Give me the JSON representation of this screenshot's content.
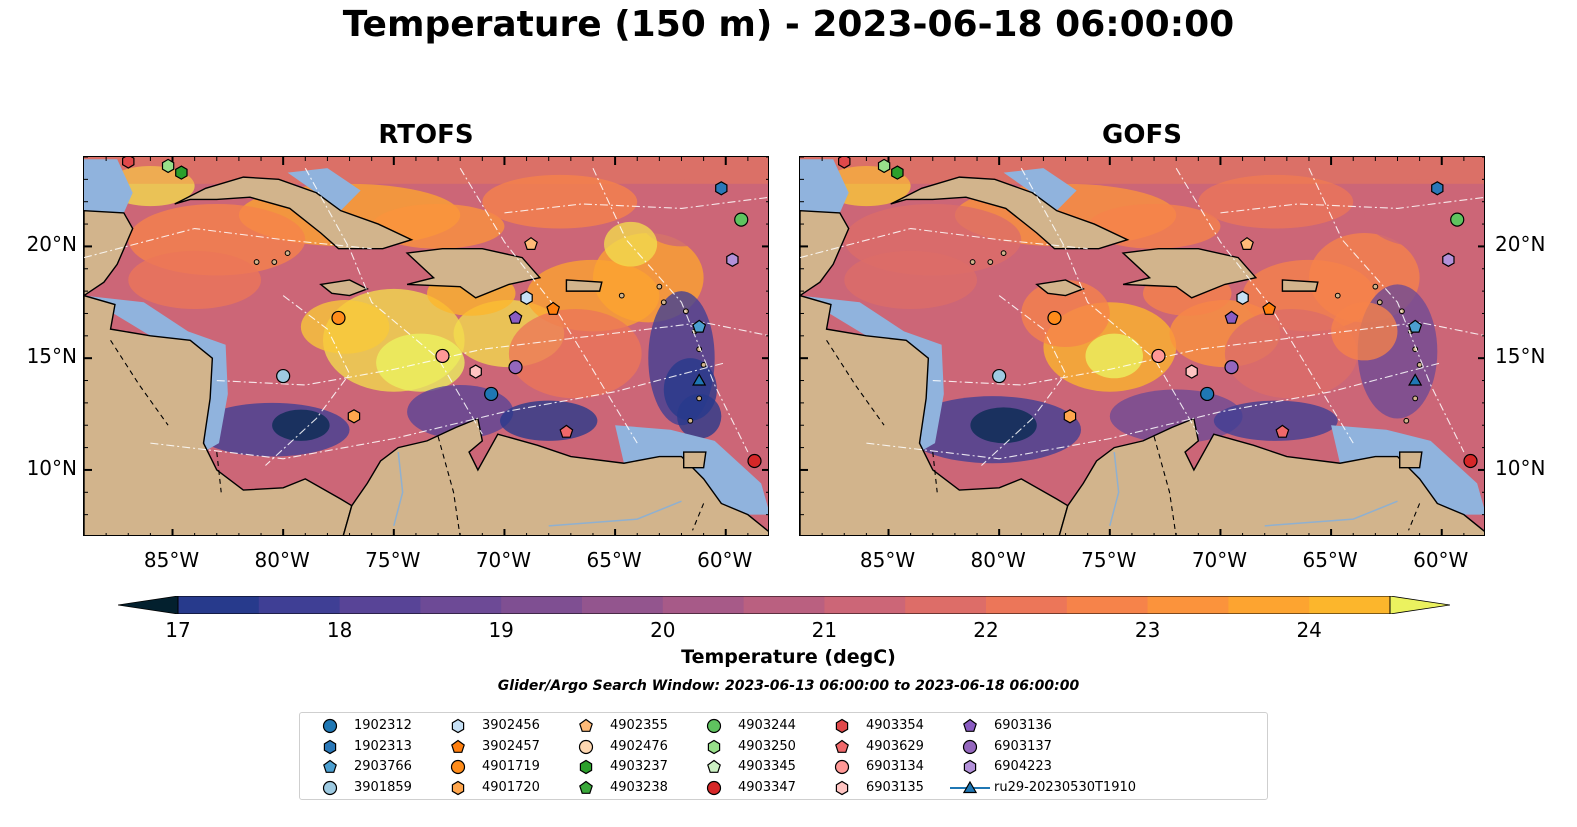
{
  "title": "Temperature (150 m) - 2023-06-18 06:00:00",
  "panels": [
    {
      "title": "RTOFS"
    },
    {
      "title": "GOFS"
    }
  ],
  "axes": {
    "lon_ticks": [
      "85°W",
      "80°W",
      "75°W",
      "70°W",
      "65°W",
      "60°W"
    ],
    "lat_ticks": [
      "20°N",
      "15°N",
      "10°N"
    ],
    "lon_range": [
      -89,
      -58
    ],
    "lat_range": [
      7,
      24
    ]
  },
  "colorbar": {
    "label": "Temperature (degC)",
    "ticks": [
      "17",
      "18",
      "19",
      "20",
      "21",
      "22",
      "23",
      "24"
    ],
    "range": [
      16.75,
      24.5
    ],
    "colors": [
      "#03202e",
      "#082c52",
      "#123473",
      "#273a8c",
      "#3f3f95",
      "#584497",
      "#6d4a96",
      "#7f4f92",
      "#93558e",
      "#a75a88",
      "#ba6080",
      "#cc6677",
      "#dd6d68",
      "#ec7659",
      "#f6834a",
      "#fb933c",
      "#fda430",
      "#fcb62c",
      "#f8c939",
      "#f2dd4d",
      "#ebf25f"
    ]
  },
  "search_window": "Glider/Argo Search Window: 2023-06-13 06:00:00 to 2023-06-18 06:00:00",
  "legend": [
    {
      "label": "1902312",
      "marker": "circle",
      "color": "#1f77b4"
    },
    {
      "label": "1902313",
      "marker": "hexagon",
      "color": "#2a78b8"
    },
    {
      "label": "2903766",
      "marker": "pentagon",
      "color": "#4c9fd0"
    },
    {
      "label": "3901859",
      "marker": "circle",
      "color": "#9ecae1"
    },
    {
      "label": "3902456",
      "marker": "hexagon",
      "color": "#c6e0f5"
    },
    {
      "label": "3902457",
      "marker": "pentagon",
      "color": "#ff7f0e"
    },
    {
      "label": "4901719",
      "marker": "circle",
      "color": "#ff8c1a"
    },
    {
      "label": "4901720",
      "marker": "hexagon",
      "color": "#ffa64d"
    },
    {
      "label": "4902355",
      "marker": "pentagon",
      "color": "#ffbb78"
    },
    {
      "label": "4902476",
      "marker": "circle",
      "color": "#ffd8b1"
    },
    {
      "label": "4903237",
      "marker": "hexagon",
      "color": "#2ca02c"
    },
    {
      "label": "4903238",
      "marker": "pentagon",
      "color": "#3aa83a"
    },
    {
      "label": "4903244",
      "marker": "circle",
      "color": "#5fc35f"
    },
    {
      "label": "4903250",
      "marker": "hexagon",
      "color": "#98df8a"
    },
    {
      "label": "4903345",
      "marker": "pentagon",
      "color": "#cdf2c4"
    },
    {
      "label": "4903347",
      "marker": "circle",
      "color": "#d62728"
    },
    {
      "label": "4903354",
      "marker": "hexagon",
      "color": "#e0484a"
    },
    {
      "label": "4903629",
      "marker": "pentagon",
      "color": "#f0686a"
    },
    {
      "label": "6903134",
      "marker": "circle",
      "color": "#ff9896"
    },
    {
      "label": "6903135",
      "marker": "hexagon",
      "color": "#ffc4c2"
    },
    {
      "label": "6903136",
      "marker": "pentagon",
      "color": "#8a5cc2"
    },
    {
      "label": "6903137",
      "marker": "circle",
      "color": "#9467bd"
    },
    {
      "label": "6904223",
      "marker": "hexagon",
      "color": "#b391d9"
    },
    {
      "label": "ru29-20230530T1910",
      "marker": "triangle-line",
      "color": "#1f77b4"
    }
  ],
  "floats": [
    {
      "id": "1902313",
      "lon": -60.2,
      "lat": 22.6
    },
    {
      "id": "4903244",
      "lon": -59.3,
      "lat": 21.2
    },
    {
      "id": "6904223",
      "lon": -59.7,
      "lat": 19.4
    },
    {
      "id": "4902355",
      "lon": -68.8,
      "lat": 20.1
    },
    {
      "id": "3902456",
      "lon": -69.0,
      "lat": 17.7
    },
    {
      "id": "3902457",
      "lon": -67.8,
      "lat": 17.2
    },
    {
      "id": "6903136",
      "lon": -69.5,
      "lat": 16.8
    },
    {
      "id": "4901719",
      "lon": -77.5,
      "lat": 16.8
    },
    {
      "id": "2903766",
      "lon": -61.2,
      "lat": 16.4
    },
    {
      "id": "6903134",
      "lon": -72.8,
      "lat": 15.1
    },
    {
      "id": "6903137",
      "lon": -69.5,
      "lat": 14.6
    },
    {
      "id": "6903135",
      "lon": -71.3,
      "lat": 14.4
    },
    {
      "id": "3901859",
      "lon": -80.0,
      "lat": 14.2
    },
    {
      "id": "ru29-20230530T1910",
      "lon": -61.2,
      "lat": 14.0
    },
    {
      "id": "1902312",
      "lon": -70.6,
      "lat": 13.4
    },
    {
      "id": "4901720",
      "lon": -76.8,
      "lat": 12.4
    },
    {
      "id": "4903629",
      "lon": -67.2,
      "lat": 11.7
    },
    {
      "id": "4903347",
      "lon": -58.7,
      "lat": 10.4
    },
    {
      "id": "4903237",
      "lon": -84.6,
      "lat": 23.3
    },
    {
      "id": "4903250",
      "lon": -85.2,
      "lat": 23.6
    },
    {
      "id": "4903354",
      "lon": -87.0,
      "lat": 23.8
    }
  ]
}
